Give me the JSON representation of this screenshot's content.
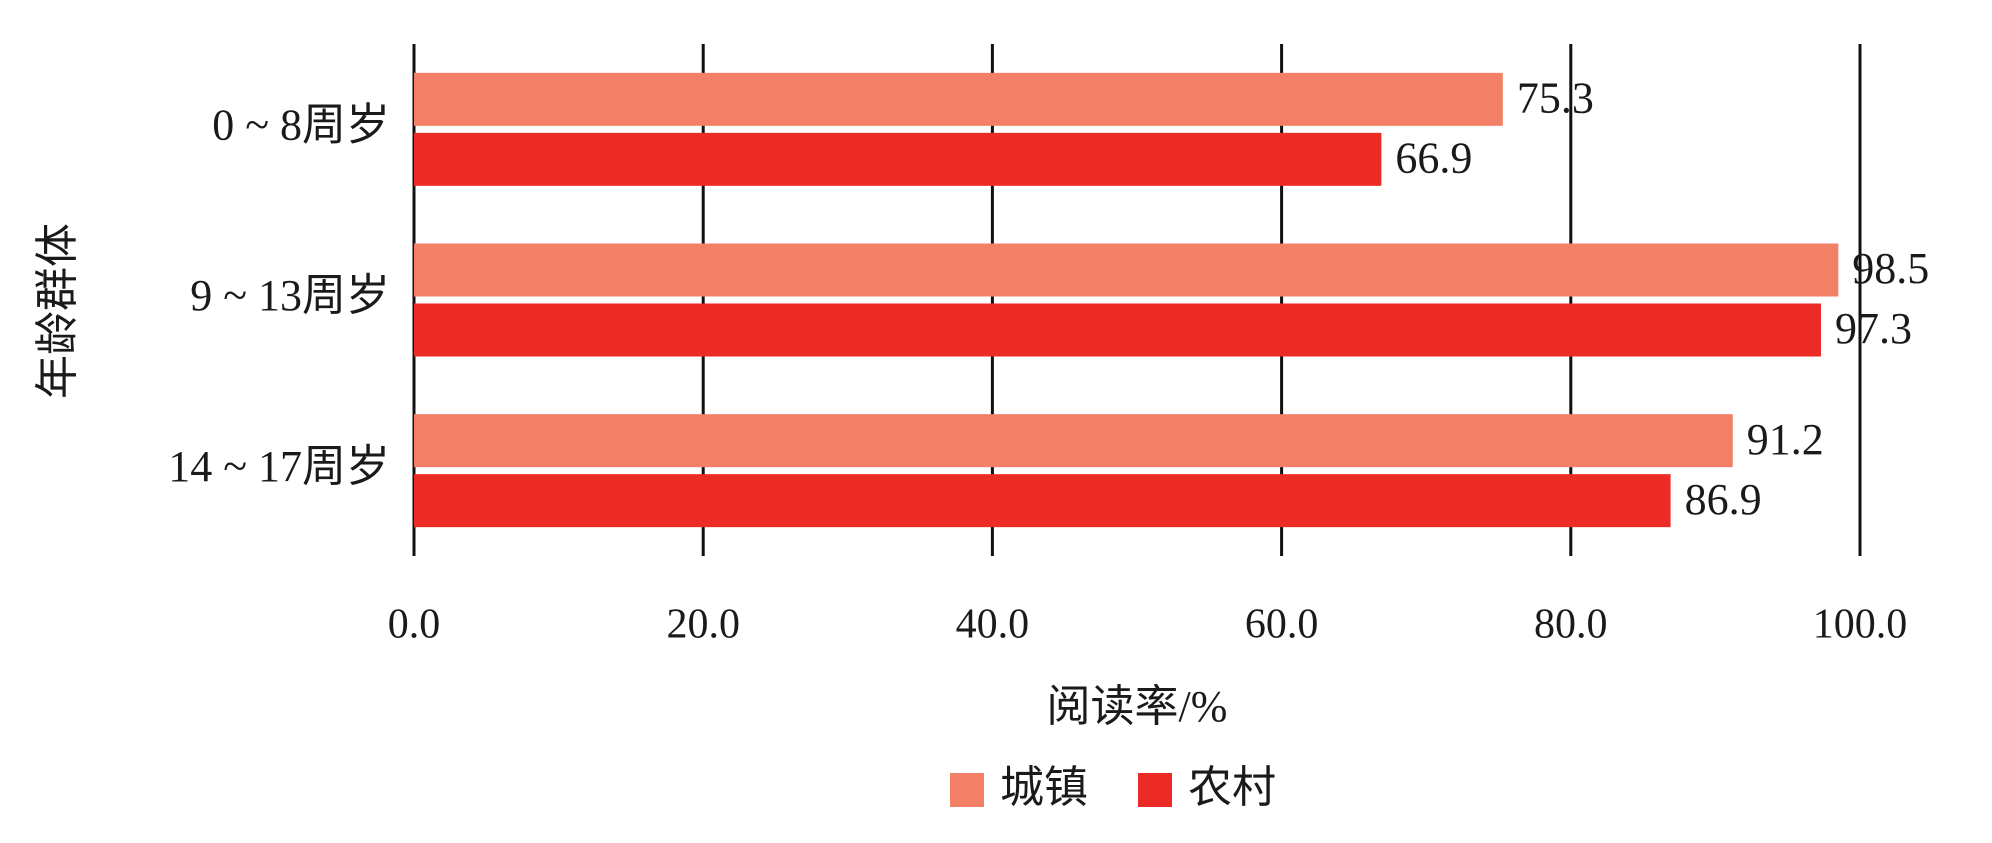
{
  "chart_data": {
    "type": "bar",
    "orientation": "horizontal",
    "categories": [
      "0 ~ 8周岁",
      "9 ~ 13周岁",
      "14 ~ 17周岁"
    ],
    "series": [
      {
        "name": "城镇",
        "color": "#f37f66",
        "values": [
          75.3,
          98.5,
          91.2
        ]
      },
      {
        "name": "农村",
        "color": "#ec2a26",
        "values": [
          66.9,
          97.3,
          86.9
        ]
      }
    ],
    "xlabel": "阅读率/%",
    "ylabel": "年龄群体",
    "xlim": [
      0,
      100
    ],
    "xticks": [
      {
        "value": 0,
        "label": "0.0"
      },
      {
        "value": 20,
        "label": "20.0"
      },
      {
        "value": 40,
        "label": "40.0"
      },
      {
        "value": 60,
        "label": "60.0"
      },
      {
        "value": 80,
        "label": "80.0"
      },
      {
        "value": 100,
        "label": "100.0"
      }
    ],
    "grid": true,
    "legend": "bottom"
  }
}
